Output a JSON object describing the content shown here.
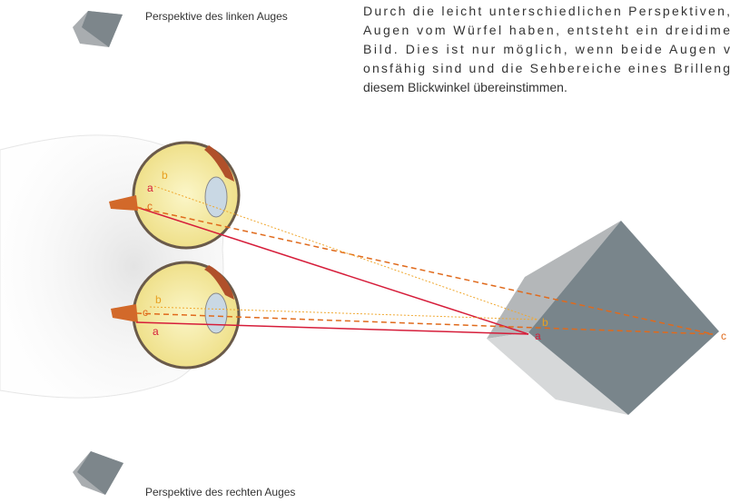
{
  "captions": {
    "left_eye": "Perspektive des linken Auges",
    "right_eye": "Perspektive des rechten Auges"
  },
  "paragraph": {
    "lines": [
      "Durch die leicht unterschiedlichen Perspektiven,",
      "Augen vom Würfel haben, entsteht ein dreidime",
      "Bild. Dies ist nur möglich, wenn beide Augen v",
      "onsfähig sind und die Sehbereiche eines Brilleng",
      "diesem Blickwinkel übereinstimmen."
    ]
  },
  "labels": {
    "left_eye": {
      "a": "a",
      "b": "b",
      "c": "c"
    },
    "right_eye": {
      "a": "a",
      "b": "b",
      "c": "c"
    },
    "cube": {
      "a": "a",
      "b": "b",
      "c": "c"
    }
  }
}
